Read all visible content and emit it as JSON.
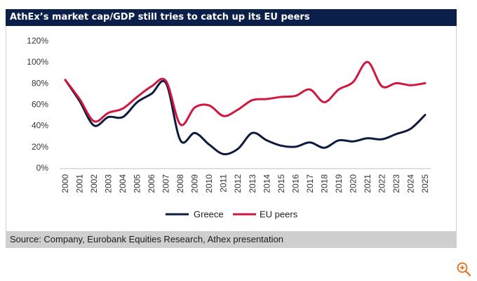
{
  "title": "AthEx’s market cap/GDP still tries to catch up its EU peers",
  "source": "Source: Company, Eurobank Equities Research, Athex presentation",
  "colors": {
    "title_bg": "#0b1f4a",
    "greece": "#0d1b3e",
    "eu": "#d0183f",
    "source_bg": "#cfcfcf"
  },
  "chart_data": {
    "type": "line",
    "title": "AthEx’s market cap/GDP still tries to catch up its EU peers",
    "xlabel": "",
    "ylabel": "",
    "ylim": [
      0,
      120
    ],
    "yticks": [
      "0%",
      "20%",
      "40%",
      "60%",
      "80%",
      "100%",
      "120%"
    ],
    "categories": [
      "2000",
      "2001",
      "2002",
      "2003",
      "2004",
      "2005",
      "2006",
      "2007",
      "2008",
      "2009",
      "2010",
      "2011",
      "2012",
      "2013",
      "2014",
      "2015",
      "2016",
      "2017",
      "2018",
      "2019",
      "2020",
      "2021",
      "2022",
      "2023",
      "2024",
      "2025"
    ],
    "legend_position": "bottom",
    "grid": false,
    "series": [
      {
        "name": "Greece",
        "values": [
          83,
          63,
          40,
          48,
          48,
          62,
          70,
          80,
          26,
          33,
          22,
          13,
          18,
          33,
          26,
          21,
          20,
          24,
          19,
          26,
          25,
          28,
          27,
          32,
          37,
          50
        ]
      },
      {
        "name": "EU peers",
        "values": [
          83,
          65,
          44,
          52,
          56,
          67,
          77,
          82,
          41,
          57,
          59,
          49,
          55,
          64,
          65,
          67,
          68,
          74,
          62,
          74,
          81,
          100,
          77,
          80,
          78,
          80
        ]
      }
    ]
  }
}
